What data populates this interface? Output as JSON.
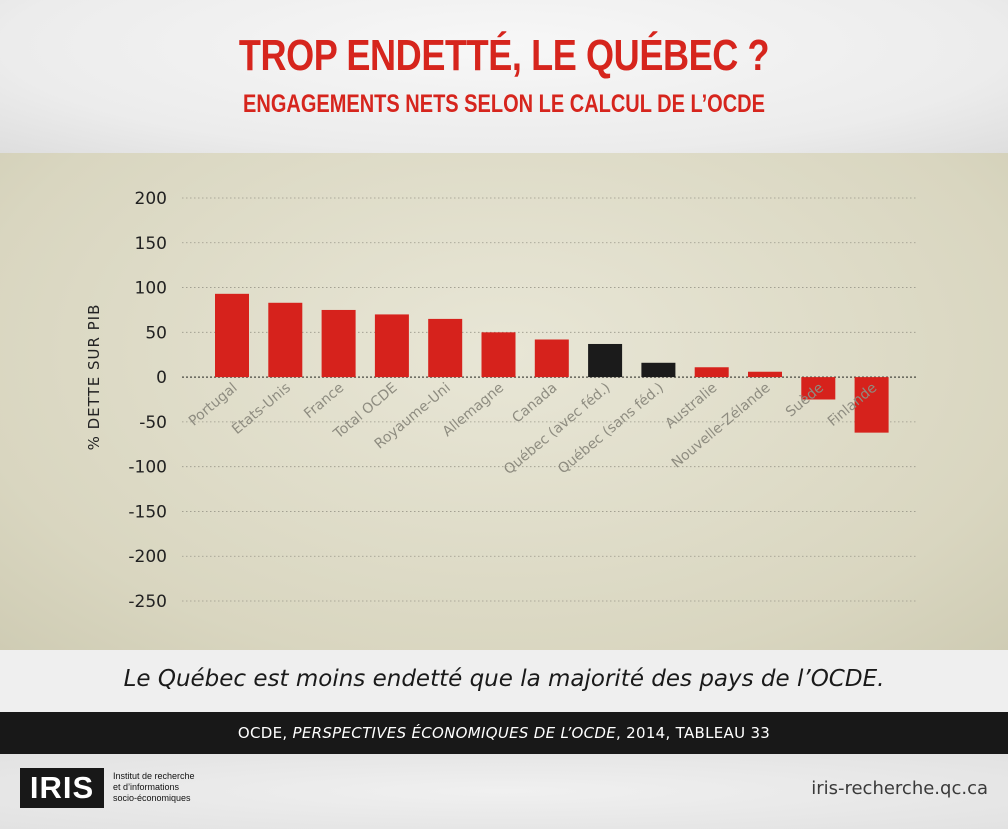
{
  "header": {
    "title": "TROP ENDETTÉ, LE QUÉBEC ?",
    "subtitle": "ENGAGEMENTS NETS SELON LE CALCUL DE L’OCDE"
  },
  "chart_data": {
    "type": "bar",
    "ylabel": "% DETTE SUR PIB",
    "ylim": [
      -250,
      200
    ],
    "yticks": [
      200,
      150,
      100,
      50,
      0,
      -50,
      -100,
      -150,
      -200,
      -250
    ],
    "grid": true,
    "categories": [
      "Portugal",
      "États-Unis",
      "France",
      "Total OCDE",
      "Royaume-Uni",
      "Allemagne",
      "Canada",
      "Québec (avec féd.)",
      "Québec (sans féd.)",
      "Australie",
      "Nouvelle-Zélande",
      "Suède",
      "Finlande"
    ],
    "values": [
      93,
      83,
      75,
      70,
      65,
      50,
      42,
      37,
      16,
      11,
      6,
      -25,
      -62
    ],
    "colors": [
      "#d6221c",
      "#d6221c",
      "#d6221c",
      "#d6221c",
      "#d6221c",
      "#d6221c",
      "#d6221c",
      "#1b1b1b",
      "#1b1b1b",
      "#d6221c",
      "#d6221c",
      "#d6221c",
      "#d6221c"
    ]
  },
  "caption": "Le Québec est moins endetté que la majorité des pays de l’OCDE.",
  "source": {
    "prefix": "OCDE, ",
    "title": "PERSPECTIVES ÉCONOMIQUES DE L’OCDE",
    "suffix": ", 2014, TABLEAU 33"
  },
  "footer": {
    "logo": "IRIS",
    "org_line1": "Institut de recherche",
    "org_line2": "et d’informations",
    "org_line3": "socio-économiques",
    "website": "iris-recherche.qc.ca"
  }
}
